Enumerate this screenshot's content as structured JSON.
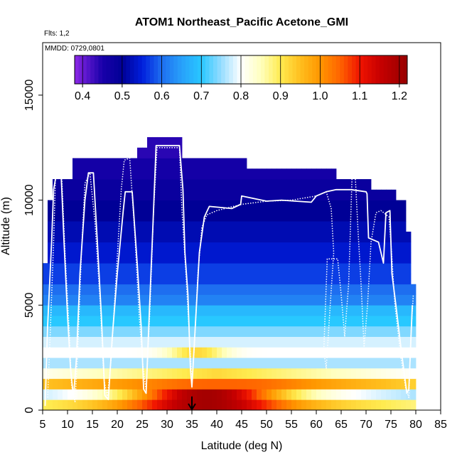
{
  "chart_data": {
    "type": "heatmap",
    "title": "ATOM1 Northeast_Pacific Acetone_GMI",
    "subtitle_flights": "Flts: 1,2",
    "subtitle_dates": "MMDD: 0729,0801",
    "xlabel": "Latitude (deg N)",
    "ylabel": "Altitude (m)",
    "xlim": [
      5,
      85
    ],
    "ylim": [
      0,
      17500
    ],
    "x_ticks": [
      5,
      10,
      15,
      20,
      25,
      30,
      35,
      40,
      45,
      50,
      55,
      60,
      65,
      70,
      75,
      80,
      85
    ],
    "y_ticks": [
      0,
      5000,
      10000,
      15000
    ],
    "colorbar": {
      "min": 0.38,
      "max": 1.22,
      "ticks": [
        0.4,
        0.5,
        0.6,
        0.7,
        0.8,
        0.9,
        1.0,
        1.1,
        1.2
      ],
      "tick_labels": [
        "0.4",
        "0.5",
        "0.6",
        "0.7",
        "0.8",
        "0.9",
        "1.0",
        "1.1",
        "1.2"
      ]
    },
    "grid_cell": {
      "dlat": 1,
      "dalt": 500
    },
    "column_top_altitude": [
      {
        "lat_from": 5,
        "lat_to": 6,
        "top": 7000
      },
      {
        "lat_from": 6,
        "lat_to": 7,
        "top": 10000
      },
      {
        "lat_from": 7,
        "lat_to": 11,
        "top": 11000
      },
      {
        "lat_from": 11,
        "lat_to": 24,
        "top": 12000
      },
      {
        "lat_from": 24,
        "lat_to": 26,
        "top": 12500
      },
      {
        "lat_from": 26,
        "lat_to": 33,
        "top": 13000
      },
      {
        "lat_from": 33,
        "lat_to": 46,
        "top": 12000
      },
      {
        "lat_from": 46,
        "lat_to": 64,
        "top": 11500
      },
      {
        "lat_from": 64,
        "lat_to": 71,
        "top": 11000
      },
      {
        "lat_from": 71,
        "lat_to": 76,
        "top": 10500
      },
      {
        "lat_from": 76,
        "lat_to": 78,
        "top": 10000
      },
      {
        "lat_from": 78,
        "lat_to": 79,
        "top": 8500
      },
      {
        "lat_from": 79,
        "lat_to": 80,
        "top": 6000
      }
    ],
    "altitude_profile": [
      {
        "alt": 250,
        "value": 1.0
      },
      {
        "alt": 750,
        "value": 0.88
      },
      {
        "alt": 1250,
        "value": 1.05
      },
      {
        "alt": 1750,
        "value": 0.92
      },
      {
        "alt": 2250,
        "value": 0.76
      },
      {
        "alt": 2750,
        "value": 0.8
      },
      {
        "alt": 3250,
        "value": 0.78
      },
      {
        "alt": 3750,
        "value": 0.74
      },
      {
        "alt": 4250,
        "value": 0.7
      },
      {
        "alt": 4750,
        "value": 0.68
      },
      {
        "alt": 5250,
        "value": 0.62
      },
      {
        "alt": 5750,
        "value": 0.6
      },
      {
        "alt": 6500,
        "value": 0.57
      },
      {
        "alt": 7500,
        "value": 0.54
      },
      {
        "alt": 8500,
        "value": 0.52
      },
      {
        "alt": 9500,
        "value": 0.5
      },
      {
        "alt": 10500,
        "value": 0.48
      },
      {
        "alt": 11500,
        "value": 0.46
      },
      {
        "alt": 12500,
        "value": 0.44
      }
    ],
    "features": [
      {
        "name": "boundary layer plume",
        "lat_center": 38,
        "lat_width": 14,
        "alt": 500,
        "value": 1.2
      },
      {
        "name": "lower plume",
        "lat_center": 42,
        "lat_width": 12,
        "alt": 1250,
        "value": 1.05
      },
      {
        "name": "mid plume",
        "lat_center": 36,
        "lat_width": 6,
        "alt": 2750,
        "value": 0.92
      }
    ],
    "flight_tracks": [
      {
        "style": "solid",
        "points": [
          [
            5.5,
            200
          ],
          [
            6,
            4000
          ],
          [
            6.8,
            8000
          ],
          [
            7.2,
            10500
          ],
          [
            7.8,
            11300
          ],
          [
            8.7,
            11300
          ],
          [
            9.3,
            8000
          ],
          [
            10,
            4500
          ],
          [
            10.6,
            2000
          ],
          [
            11.2,
            600
          ],
          [
            11.8,
            2500
          ],
          [
            12.5,
            6500
          ],
          [
            13.5,
            10000
          ],
          [
            14.2,
            11300
          ],
          [
            15.2,
            11300
          ],
          [
            16,
            8000
          ],
          [
            16.8,
            4500
          ],
          [
            17.5,
            700
          ],
          [
            18.2,
            500
          ],
          [
            19,
            3500
          ],
          [
            20,
            6500
          ],
          [
            21.2,
            9500
          ],
          [
            21.6,
            10400
          ],
          [
            23,
            10400
          ],
          [
            24,
            7000
          ],
          [
            24.8,
            4000
          ],
          [
            25.3,
            1000
          ],
          [
            25.8,
            800
          ],
          [
            26.5,
            5000
          ],
          [
            27.2,
            9000
          ],
          [
            27.8,
            12600
          ],
          [
            32.5,
            12600
          ],
          [
            33.2,
            10500
          ],
          [
            33.6,
            7500
          ],
          [
            34.2,
            5500
          ],
          [
            34.7,
            2000
          ],
          [
            35,
            1100
          ],
          [
            35.8,
            4500
          ],
          [
            36.5,
            7500
          ],
          [
            37.5,
            9200
          ],
          [
            38.5,
            9700
          ],
          [
            43,
            9600
          ],
          [
            44.8,
            9800
          ],
          [
            45,
            10200
          ],
          [
            50,
            9950
          ],
          [
            53,
            10000
          ],
          [
            59,
            9900
          ],
          [
            60,
            10200
          ],
          [
            62,
            10400
          ],
          [
            64,
            10500
          ],
          [
            67,
            10500
          ],
          [
            70,
            10400
          ],
          [
            70.2,
            10300
          ],
          [
            70.5,
            8200
          ],
          [
            72.5,
            8000
          ],
          [
            73.5,
            7000
          ],
          [
            74,
            9400
          ],
          [
            74.8,
            9500
          ],
          [
            75.2,
            6500
          ],
          [
            76,
            5000
          ],
          [
            77,
            3000
          ],
          [
            78.2,
            800
          ],
          [
            78.6,
            1000
          ],
          [
            79.3,
            5000
          ]
        ]
      },
      {
        "style": "dotted",
        "points": [
          [
            6,
            600
          ],
          [
            6.5,
            3500
          ],
          [
            7.2,
            8000
          ],
          [
            7.6,
            11300
          ],
          [
            8.8,
            11300
          ],
          [
            9.5,
            7500
          ],
          [
            10.4,
            3500
          ],
          [
            10.8,
            1200
          ],
          [
            11.5,
            400
          ],
          [
            12,
            2500
          ],
          [
            12.8,
            7500
          ],
          [
            13.5,
            10800
          ],
          [
            14.5,
            11300
          ],
          [
            15.5,
            9000
          ],
          [
            16.6,
            5000
          ],
          [
            17.3,
            1500
          ],
          [
            18,
            600
          ],
          [
            18.8,
            2500
          ],
          [
            19.8,
            6500
          ],
          [
            20.8,
            10500
          ],
          [
            21.4,
            11900
          ],
          [
            22.5,
            12000
          ],
          [
            23.5,
            8500
          ],
          [
            24.4,
            4500
          ],
          [
            25.2,
            2000
          ],
          [
            25.8,
            900
          ],
          [
            26.6,
            5000
          ],
          [
            27.3,
            9500
          ],
          [
            28,
            12500
          ],
          [
            32.5,
            12500
          ],
          [
            33,
            9500
          ],
          [
            33.8,
            6500
          ],
          [
            34.5,
            3500
          ],
          [
            35,
            1300
          ],
          [
            35.5,
            3000
          ],
          [
            36.2,
            6500
          ],
          [
            37,
            8700
          ],
          [
            38,
            9300
          ],
          [
            40,
            9500
          ],
          [
            45,
            9800
          ],
          [
            50,
            9950
          ],
          [
            55,
            10000
          ],
          [
            60,
            10200
          ],
          [
            62,
            10400
          ],
          [
            63,
            9600
          ],
          [
            63.5,
            7500
          ],
          [
            62.8,
            5000
          ],
          [
            62,
            2000
          ],
          [
            61.5,
            2800
          ],
          [
            62.2,
            7200
          ],
          [
            64.3,
            7200
          ],
          [
            65,
            5500
          ],
          [
            65.7,
            3500
          ],
          [
            66.5,
            6000
          ],
          [
            67.2,
            11200
          ],
          [
            67.8,
            11300
          ],
          [
            68.4,
            8500
          ],
          [
            69,
            6000
          ],
          [
            69.6,
            3000
          ],
          [
            70.3,
            5000
          ],
          [
            71,
            8000
          ],
          [
            72,
            9400
          ],
          [
            73,
            9500
          ],
          [
            74.6,
            9200
          ],
          [
            75,
            8000
          ],
          [
            75.8,
            5000
          ],
          [
            77,
            2500
          ],
          [
            78,
            1000
          ],
          [
            78.6,
            600
          ],
          [
            79,
            3500
          ],
          [
            79.5,
            5500
          ]
        ]
      }
    ],
    "marker_arrow": {
      "lat": 35,
      "alt_from": 650,
      "alt_to": 0
    }
  }
}
